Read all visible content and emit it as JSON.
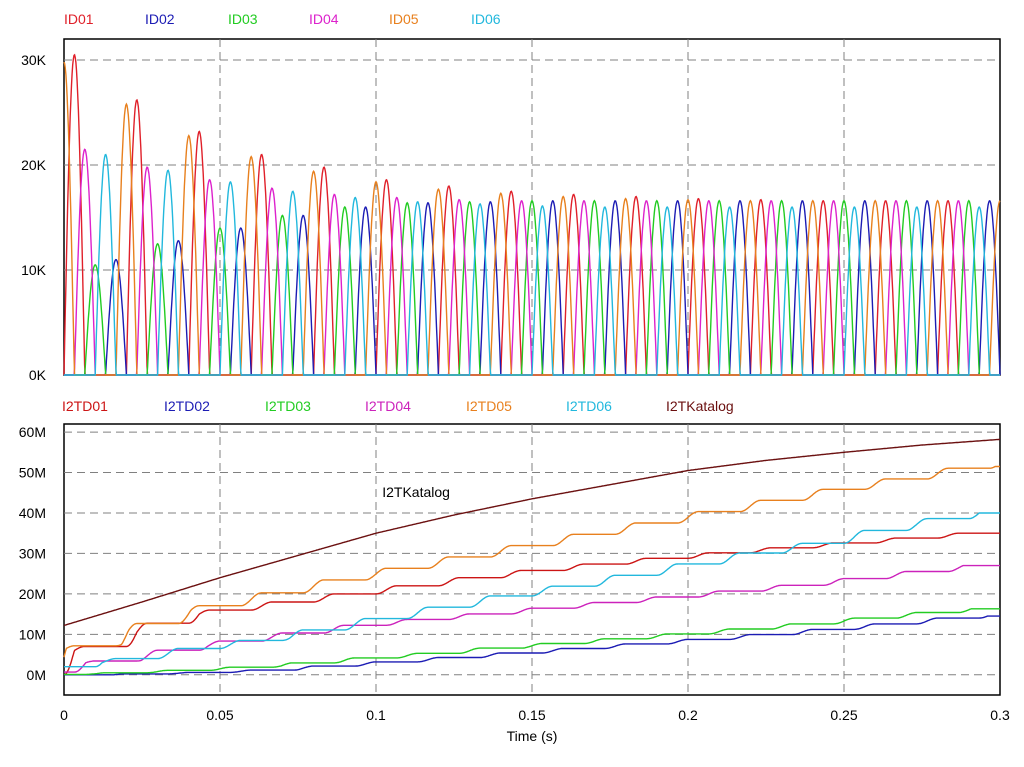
{
  "chart_data": [
    {
      "type": "line",
      "panel": "top",
      "ylim": [
        0,
        32000
      ],
      "xlim": [
        0,
        0.3
      ],
      "yticks": [
        {
          "v": 0,
          "label": "0K"
        },
        {
          "v": 10000,
          "label": "10K"
        },
        {
          "v": 20000,
          "label": "20K"
        },
        {
          "v": 30000,
          "label": "30K"
        }
      ],
      "xgrid": [
        0.05,
        0.1,
        0.15,
        0.2,
        0.25
      ],
      "grid": true,
      "legend_position": "top-left",
      "series": [
        {
          "name": "ID01",
          "color": "#e0202a",
          "phase_deg": 0,
          "peak_seq": [
            30500,
            26200,
            23200,
            21000,
            19800,
            18600,
            18000,
            17500,
            17200,
            17000,
            16800,
            16700,
            16600,
            16600,
            16600
          ]
        },
        {
          "name": "ID02",
          "color": "#1c1cb4",
          "phase_deg": 240,
          "peak_seq": [
            5000,
            11000,
            12800,
            14000,
            15200,
            16000,
            16400,
            16500,
            16600,
            16600,
            16600,
            16600,
            16600,
            16600,
            16600
          ]
        },
        {
          "name": "ID03",
          "color": "#22cc22",
          "phase_deg": 120,
          "peak_seq": [
            8000,
            10500,
            12500,
            14000,
            15200,
            16000,
            16400,
            16500,
            16600,
            16600,
            16600,
            16600,
            16600,
            16600,
            16600
          ]
        },
        {
          "name": "ID04",
          "color": "#dd22cc",
          "phase_deg": 60,
          "peak_seq": [
            24000,
            21500,
            19800,
            18600,
            17800,
            17200,
            16900,
            16700,
            16600,
            16600,
            16600,
            16600,
            16600,
            16600,
            16600
          ]
        },
        {
          "name": "ID05",
          "color": "#e8801e",
          "phase_deg": 300,
          "peak_seq": [
            29800,
            25800,
            22800,
            20800,
            19400,
            18400,
            17700,
            17300,
            17000,
            16800,
            16700,
            16600,
            16600,
            16600,
            16600
          ]
        },
        {
          "name": "ID06",
          "color": "#22b8dd",
          "phase_deg": 180,
          "peak_seq": [
            23500,
            21000,
            19500,
            18400,
            17500,
            16900,
            16500,
            16300,
            16100,
            16000,
            16000,
            16000,
            16000,
            16000,
            16000
          ]
        }
      ]
    },
    {
      "type": "line",
      "panel": "bottom",
      "ylim": [
        -5000000,
        62000000
      ],
      "xlim": [
        0,
        0.3
      ],
      "yticks": [
        {
          "v": 0,
          "label": "0M"
        },
        {
          "v": 10000000,
          "label": "10M"
        },
        {
          "v": 20000000,
          "label": "20M"
        },
        {
          "v": 30000000,
          "label": "30M"
        },
        {
          "v": 40000000,
          "label": "40M"
        },
        {
          "v": 50000000,
          "label": "50M"
        },
        {
          "v": 60000000,
          "label": "60M"
        }
      ],
      "xticks": [
        {
          "v": 0,
          "label": "0"
        },
        {
          "v": 0.05,
          "label": "0.05"
        },
        {
          "v": 0.1,
          "label": "0.1"
        },
        {
          "v": 0.15,
          "label": "0.15"
        },
        {
          "v": 0.2,
          "label": "0.2"
        },
        {
          "v": 0.25,
          "label": "0.25"
        },
        {
          "v": 0.3,
          "label": "0.3"
        }
      ],
      "xlabel": "Time (s)",
      "grid": true,
      "legend_position": "top-left",
      "annotation": {
        "text": "I2TKatalog",
        "x": 0.102,
        "y": 44000000
      },
      "series": [
        {
          "name": "I2TD01",
          "color": "#cc1515",
          "steps": true,
          "phase_deg": 0,
          "points": [
            [
              0,
              0
            ],
            [
              0.01,
              6000000
            ],
            [
              0.02,
              7000000
            ],
            [
              0.03,
              10500000
            ],
            [
              0.05,
              15000000
            ],
            [
              0.075,
              17500000
            ],
            [
              0.1,
              20000000
            ],
            [
              0.125,
              22500000
            ],
            [
              0.15,
              25000000
            ],
            [
              0.175,
              27000000
            ],
            [
              0.2,
              28800000
            ],
            [
              0.225,
              30500000
            ],
            [
              0.25,
              32000000
            ],
            [
              0.275,
              33500000
            ],
            [
              0.3,
              35000000
            ]
          ]
        },
        {
          "name": "I2TD02",
          "color": "#1c1cb4",
          "steps": true,
          "phase_deg": 240,
          "points": [
            [
              0,
              0
            ],
            [
              0.02,
              0
            ],
            [
              0.05,
              500000
            ],
            [
              0.075,
              1200000
            ],
            [
              0.1,
              2500000
            ],
            [
              0.125,
              3800000
            ],
            [
              0.15,
              5200000
            ],
            [
              0.175,
              6600000
            ],
            [
              0.2,
              8000000
            ],
            [
              0.225,
              9400000
            ],
            [
              0.25,
              11000000
            ],
            [
              0.275,
              12700000
            ],
            [
              0.3,
              14500000
            ]
          ]
        },
        {
          "name": "I2TD03",
          "color": "#22cc22",
          "steps": true,
          "phase_deg": 120,
          "points": [
            [
              0,
              0
            ],
            [
              0.02,
              300000
            ],
            [
              0.05,
              1200000
            ],
            [
              0.075,
              2200000
            ],
            [
              0.1,
              3800000
            ],
            [
              0.125,
              5200000
            ],
            [
              0.15,
              6800000
            ],
            [
              0.175,
              8200000
            ],
            [
              0.2,
              9700000
            ],
            [
              0.225,
              11200000
            ],
            [
              0.25,
              12800000
            ],
            [
              0.275,
              14600000
            ],
            [
              0.3,
              16300000
            ]
          ]
        },
        {
          "name": "I2TD04",
          "color": "#cc22bb",
          "steps": true,
          "phase_deg": 60,
          "points": [
            [
              0,
              0
            ],
            [
              0.015,
              3000000
            ],
            [
              0.025,
              3500000
            ],
            [
              0.05,
              7000000
            ],
            [
              0.075,
              9500000
            ],
            [
              0.1,
              12000000
            ],
            [
              0.125,
              13800000
            ],
            [
              0.15,
              15500000
            ],
            [
              0.175,
              17300000
            ],
            [
              0.2,
              19000000
            ],
            [
              0.225,
              20800000
            ],
            [
              0.25,
              22600000
            ],
            [
              0.275,
              24800000
            ],
            [
              0.3,
              27000000
            ]
          ]
        },
        {
          "name": "I2TD05",
          "color": "#e8801e",
          "steps": true,
          "phase_deg": 300,
          "points": [
            [
              0,
              0
            ],
            [
              0.01,
              6500000
            ],
            [
              0.02,
              7500000
            ],
            [
              0.03,
              11000000
            ],
            [
              0.05,
              16000000
            ],
            [
              0.075,
              20000000
            ],
            [
              0.1,
              24000000
            ],
            [
              0.125,
              27500000
            ],
            [
              0.15,
              31000000
            ],
            [
              0.175,
              34500000
            ],
            [
              0.2,
              38000000
            ],
            [
              0.225,
              41500000
            ],
            [
              0.25,
              45000000
            ],
            [
              0.275,
              48200000
            ],
            [
              0.3,
              51500000
            ]
          ]
        },
        {
          "name": "I2TD06",
          "color": "#22b8dd",
          "steps": true,
          "phase_deg": 180,
          "points": [
            [
              0,
              0
            ],
            [
              0.015,
              3000000
            ],
            [
              0.03,
              4000000
            ],
            [
              0.05,
              6500000
            ],
            [
              0.075,
              9000000
            ],
            [
              0.1,
              12500000
            ],
            [
              0.125,
              16000000
            ],
            [
              0.15,
              19500000
            ],
            [
              0.175,
              22500000
            ],
            [
              0.2,
              26000000
            ],
            [
              0.225,
              29500000
            ],
            [
              0.25,
              32500000
            ],
            [
              0.275,
              36500000
            ],
            [
              0.3,
              40000000
            ]
          ]
        },
        {
          "name": "I2TKatalog",
          "color": "#6b1010",
          "steps": false,
          "points": [
            [
              0,
              12200000
            ],
            [
              0.025,
              18000000
            ],
            [
              0.05,
              24000000
            ],
            [
              0.075,
              29500000
            ],
            [
              0.1,
              35000000
            ],
            [
              0.125,
              39500000
            ],
            [
              0.15,
              43500000
            ],
            [
              0.175,
              47000000
            ],
            [
              0.2,
              50500000
            ],
            [
              0.225,
              53000000
            ],
            [
              0.25,
              55000000
            ],
            [
              0.275,
              56800000
            ],
            [
              0.3,
              58200000
            ]
          ]
        }
      ]
    }
  ]
}
